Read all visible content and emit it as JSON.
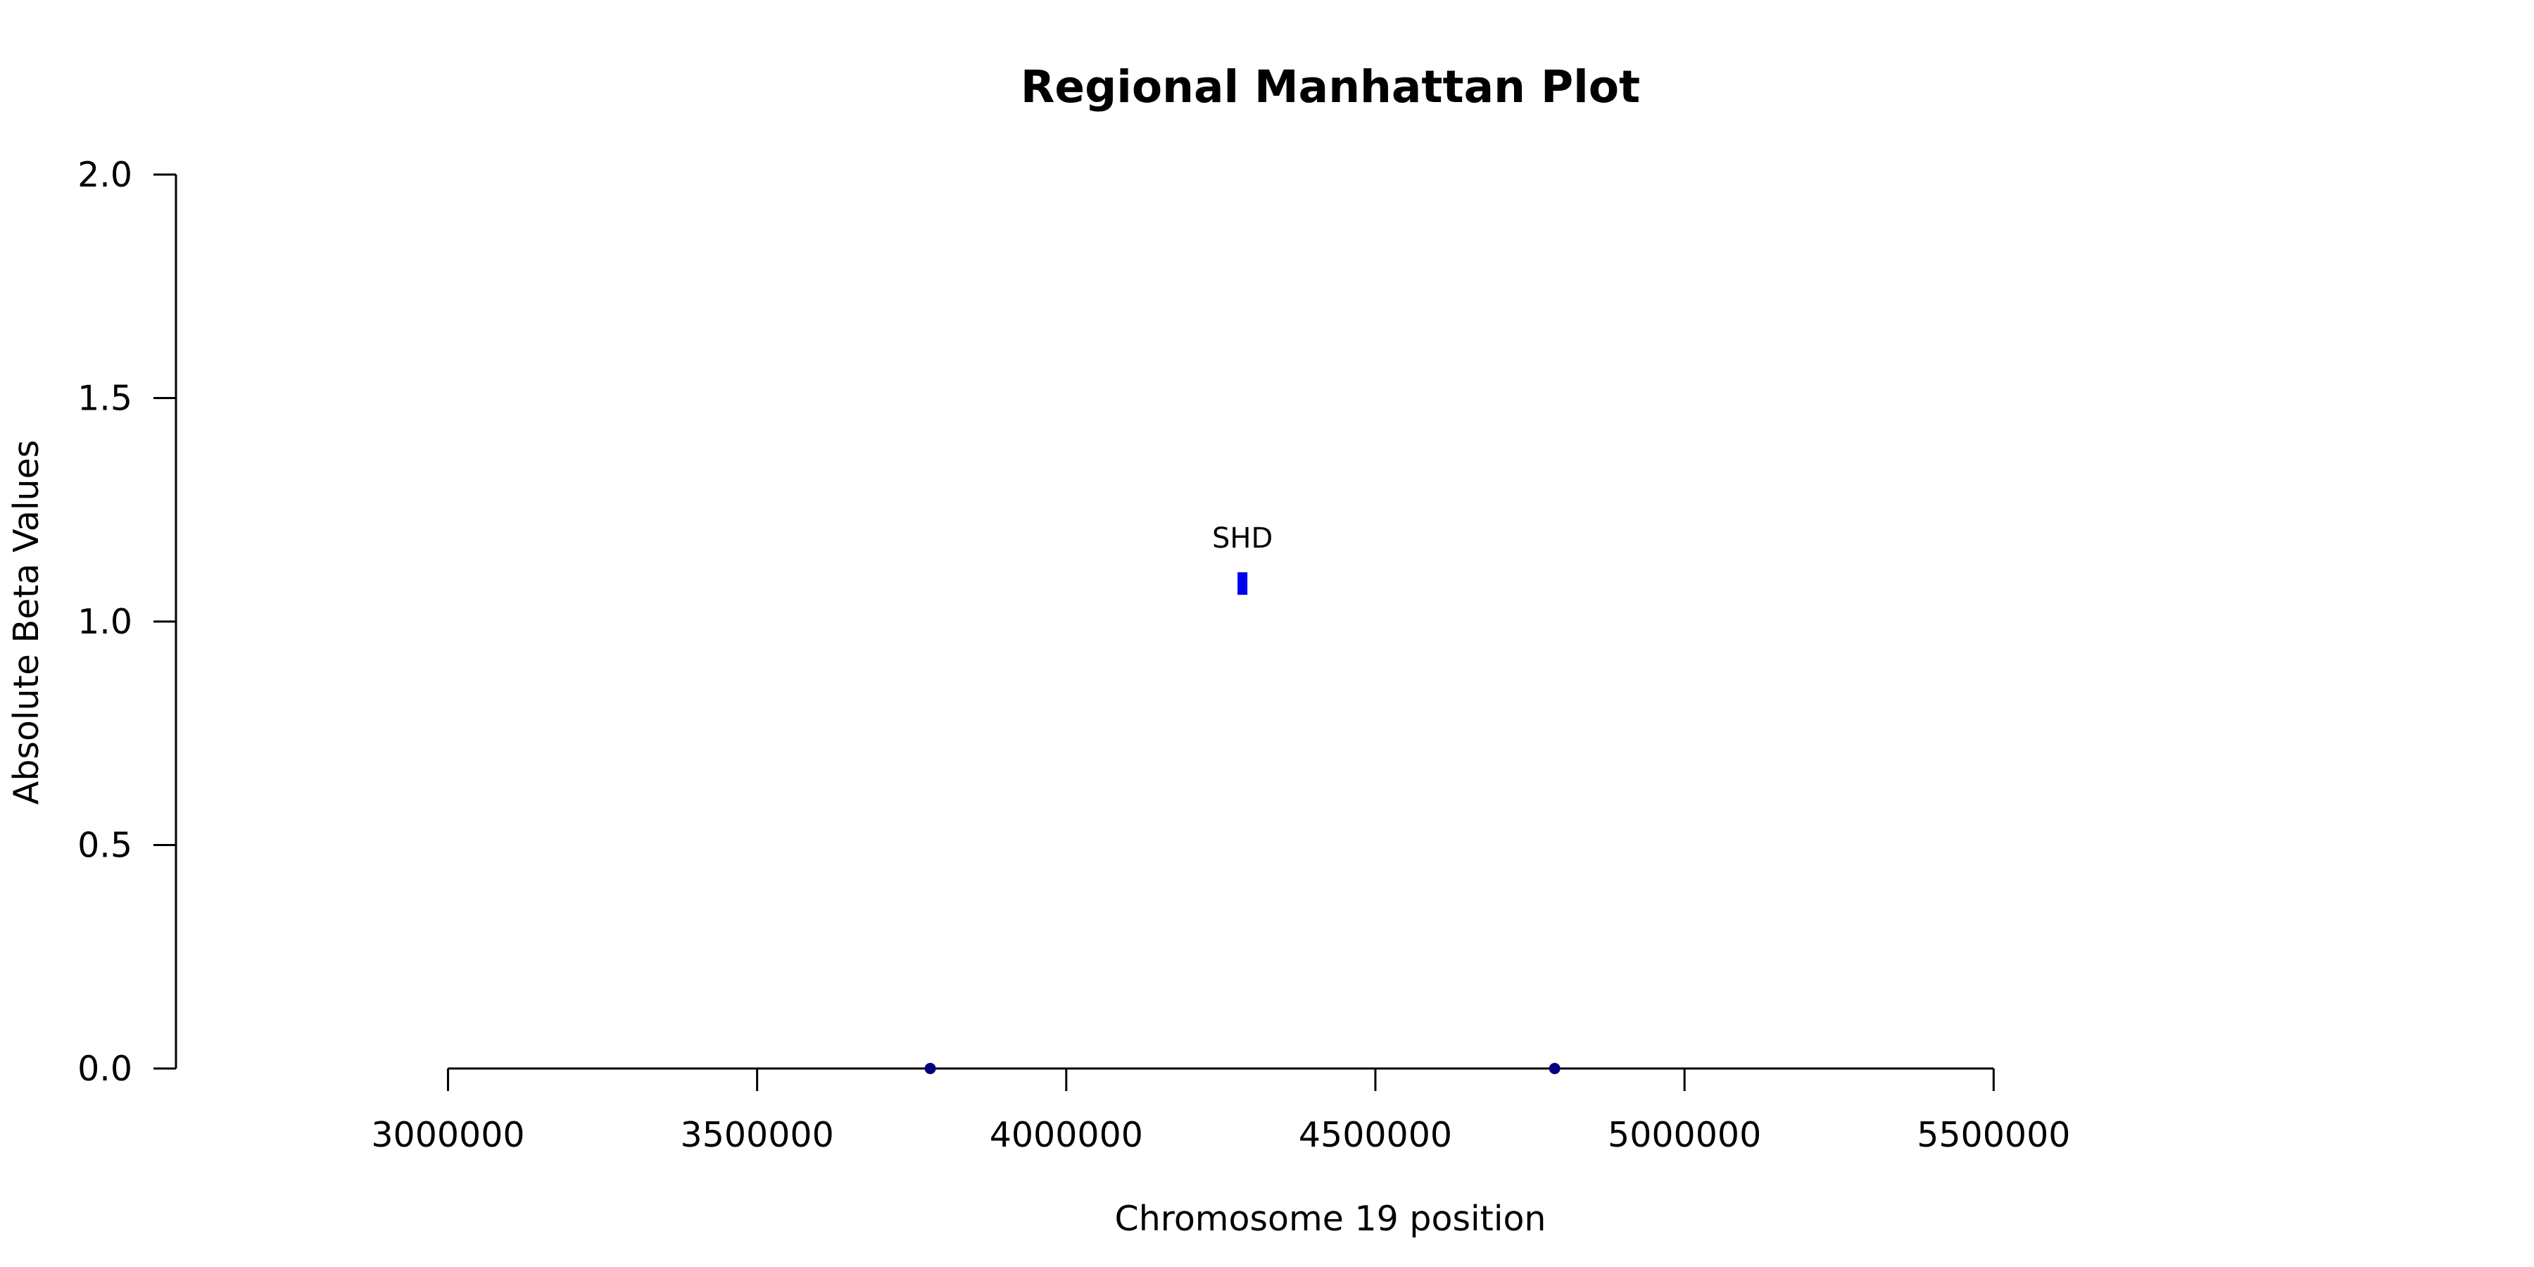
{
  "chart_data": {
    "type": "scatter",
    "title": "Regional Manhattan Plot",
    "xlabel": "Chromosome 19 position",
    "ylabel": "Absolute Beta Values",
    "xlim": [
      2560000,
      5930000
    ],
    "ylim": [
      0,
      2.0
    ],
    "xticks": [
      3000000,
      3500000,
      4000000,
      4500000,
      5000000,
      5500000
    ],
    "yticks": [
      0.0,
      0.5,
      1.0,
      1.5,
      2.0
    ],
    "xtick_labels": [
      "3000000",
      "3500000",
      "4000000",
      "4500000",
      "5000000",
      "5500000"
    ],
    "ytick_labels": [
      "0.0",
      "0.5",
      "1.0",
      "1.5",
      "2.0"
    ],
    "grid": false,
    "legend": "none",
    "series": [
      {
        "color": "#000080",
        "points": [
          {
            "x": 3780000,
            "y": 0.0
          },
          {
            "x": 4790000,
            "y": 0.0
          }
        ]
      },
      {
        "color": "#0000ee",
        "marker": "square",
        "points": [
          {
            "x": 4285000,
            "y": 1.085
          }
        ]
      }
    ],
    "annotations": [
      {
        "text": "SHD",
        "x": 4285000,
        "y": 1.085
      }
    ]
  }
}
